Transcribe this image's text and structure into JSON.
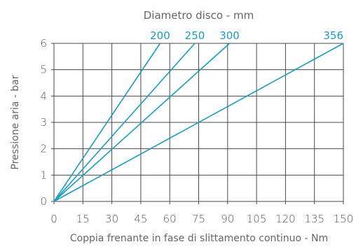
{
  "chart_data": {
    "type": "line",
    "title": "Diametro disco - mm",
    "xlabel": "Coppia frenante in fase di slittamento continuo - Nm",
    "ylabel": "Pressione aria - bar",
    "xlim": [
      0,
      150
    ],
    "ylim": [
      0,
      6
    ],
    "x_ticks": [
      "0",
      "15",
      "30",
      "45",
      "60",
      "75",
      "90",
      "105",
      "120",
      "135",
      "150"
    ],
    "y_ticks": [
      "0",
      "1",
      "2",
      "3",
      "4",
      "5",
      "6"
    ],
    "grid": true,
    "series": [
      {
        "name": "200",
        "x": [
          0,
          55
        ],
        "y": [
          0,
          6
        ]
      },
      {
        "name": "250",
        "x": [
          0,
          73
        ],
        "y": [
          0,
          6
        ]
      },
      {
        "name": "300",
        "x": [
          0,
          91
        ],
        "y": [
          0,
          6
        ]
      },
      {
        "name": "356",
        "x": [
          0,
          150
        ],
        "y": [
          0,
          6
        ]
      }
    ],
    "colors": {
      "line": "#1a9cc0",
      "grid": "#4a4a4a",
      "text": "#555555"
    }
  }
}
